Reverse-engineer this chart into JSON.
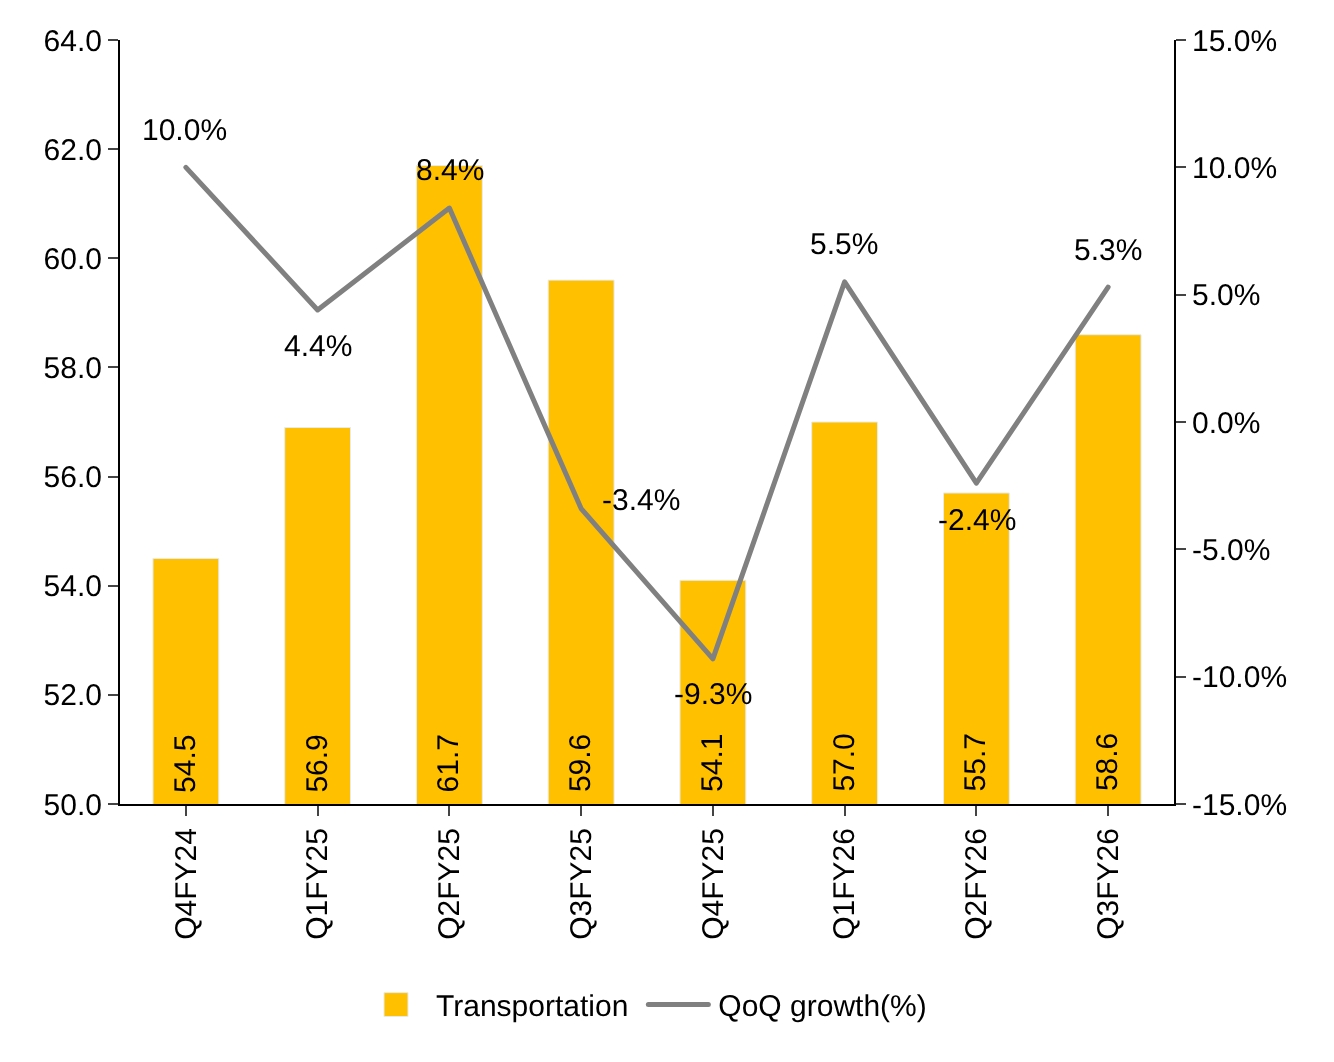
{
  "chart_data": {
    "type": "bar",
    "categories": [
      "Q4FY24",
      "Q1FY25",
      "Q2FY25",
      "Q3FY25",
      "Q4FY25",
      "Q1FY26",
      "Q2FY26",
      "Q3FY26"
    ],
    "series": [
      {
        "name": "Transportation",
        "color": "#ffc000",
        "values": [
          54.5,
          56.9,
          61.7,
          59.6,
          54.1,
          57.0,
          55.7,
          58.6
        ],
        "value_labels": [
          "54.5",
          "56.9",
          "61.7",
          "59.6",
          "54.1",
          "57.0",
          "55.7",
          "58.6"
        ]
      },
      {
        "name": "QoQ growth(%)",
        "type": "line",
        "axis": "y2",
        "color": "#808080",
        "values": [
          10.0,
          4.4,
          8.4,
          -3.4,
          -9.3,
          5.5,
          -2.4,
          5.3
        ],
        "value_labels": [
          "10.0%",
          "4.4%",
          "8.4%",
          "-3.4%",
          "-9.3%",
          "5.5%",
          "-2.4%",
          "5.3%"
        ]
      }
    ],
    "ylim": [
      50,
      64
    ],
    "yticks": [
      {
        "value": 50,
        "label": "50.0"
      },
      {
        "value": 52,
        "label": "52.0"
      },
      {
        "value": 54,
        "label": "54.0"
      },
      {
        "value": 56,
        "label": "56.0"
      },
      {
        "value": 58,
        "label": "58.0"
      },
      {
        "value": 60,
        "label": "60.0"
      },
      {
        "value": 62,
        "label": "62.0"
      },
      {
        "value": 64,
        "label": "64.0"
      }
    ],
    "y2lim": [
      -15,
      15
    ],
    "y2ticks": [
      {
        "value": -15,
        "label": "-15.0%"
      },
      {
        "value": -10,
        "label": "-10.0%"
      },
      {
        "value": -5,
        "label": "-5.0%"
      },
      {
        "value": 0,
        "label": "0.0%"
      },
      {
        "value": 5,
        "label": "5.0%"
      },
      {
        "value": 10,
        "label": "10.0%"
      },
      {
        "value": 15,
        "label": "15.0%"
      }
    ],
    "legend": "bottom",
    "line_style": "solid",
    "marker": "none"
  }
}
